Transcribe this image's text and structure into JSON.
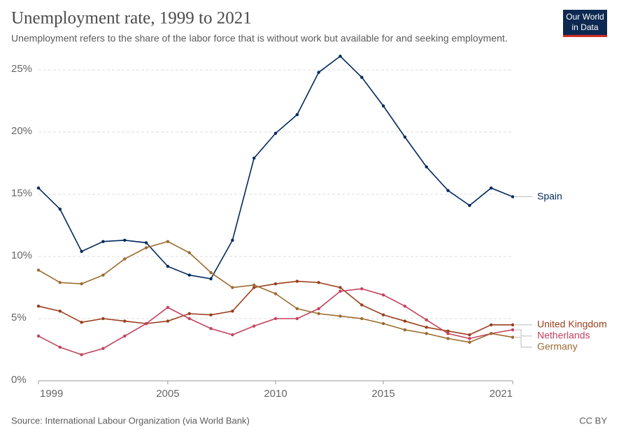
{
  "chart_data": {
    "type": "line",
    "title": "Unemployment rate, 1999 to 2021",
    "subtitle": "Unemployment refers to the share of the labor force that is without work but available for and seeking employment.",
    "source": "Source: International Labour Organization (via World Bank)",
    "license": "CC BY",
    "logo": [
      "Our World",
      "in Data"
    ],
    "x": [
      1999,
      2000,
      2001,
      2002,
      2003,
      2004,
      2005,
      2006,
      2007,
      2008,
      2009,
      2010,
      2011,
      2012,
      2013,
      2014,
      2015,
      2016,
      2017,
      2018,
      2019,
      2020,
      2021
    ],
    "xlim": [
      1999,
      2021
    ],
    "xticks": [
      1999,
      2005,
      2010,
      2015,
      2021
    ],
    "ylim": [
      0,
      25
    ],
    "yticks": [
      {
        "value": 0,
        "label": "0%"
      },
      {
        "value": 5,
        "label": "5%"
      },
      {
        "value": 10,
        "label": "10%"
      },
      {
        "value": 15,
        "label": "15%"
      },
      {
        "value": 20,
        "label": "20%"
      },
      {
        "value": 25,
        "label": "25%"
      }
    ],
    "grid": true,
    "series": [
      {
        "name": "Spain",
        "color": "#00295b",
        "values": [
          15.5,
          13.8,
          10.4,
          11.2,
          11.3,
          11.1,
          9.2,
          8.5,
          8.2,
          11.3,
          17.9,
          19.9,
          21.4,
          24.8,
          26.1,
          24.4,
          22.1,
          19.6,
          17.2,
          15.3,
          14.1,
          15.5,
          14.8
        ]
      },
      {
        "name": "United Kingdom",
        "color": "#9a3d1c",
        "values": [
          6.0,
          5.6,
          4.7,
          5.0,
          4.8,
          4.6,
          4.8,
          5.4,
          5.3,
          5.6,
          7.5,
          7.8,
          8.0,
          7.9,
          7.5,
          6.1,
          5.3,
          4.8,
          4.3,
          4.0,
          3.7,
          4.5,
          4.5
        ]
      },
      {
        "name": "Netherlands",
        "color": "#c4425f",
        "values": [
          3.6,
          2.7,
          2.1,
          2.6,
          3.6,
          4.6,
          5.9,
          5.0,
          4.2,
          3.7,
          4.4,
          5.0,
          5.0,
          5.8,
          7.2,
          7.4,
          6.9,
          6.0,
          4.9,
          3.8,
          3.4,
          3.8,
          4.1
        ]
      },
      {
        "name": "Germany",
        "color": "#9b6a2e",
        "values": [
          8.9,
          7.9,
          7.8,
          8.5,
          9.8,
          10.7,
          11.2,
          10.3,
          8.7,
          7.5,
          7.7,
          7.0,
          5.8,
          5.4,
          5.2,
          5.0,
          4.6,
          4.1,
          3.8,
          3.4,
          3.1,
          3.8,
          3.5
        ]
      }
    ]
  }
}
